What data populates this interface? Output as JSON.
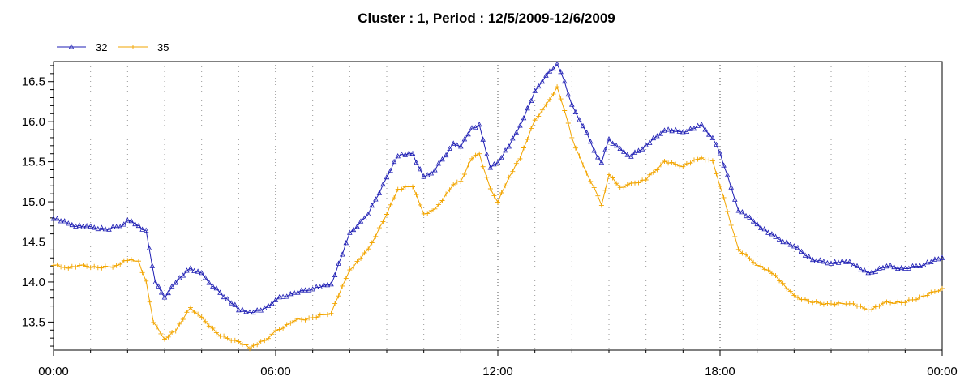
{
  "chart_data": {
    "type": "line",
    "title": "Cluster : 1, Period : 12/5/2009-12/6/2009",
    "xlabel": "",
    "ylabel": "",
    "x_ticks": [
      "00:00",
      "06:00",
      "12:00",
      "18:00",
      "00:00"
    ],
    "x_range_hours": [
      0,
      24
    ],
    "y_ticks": [
      "13.5",
      "14.0",
      "14.5",
      "15.0",
      "15.5",
      "16.0",
      "16.5"
    ],
    "ylim": [
      13.15,
      16.75
    ],
    "grid": "vertical dotted lines",
    "legend_position": "top-left",
    "series": [
      {
        "name": "32",
        "color": "#1f1fb4",
        "marker": "triangle",
        "points": [
          [
            0,
            14.8
          ],
          [
            0.5,
            14.71
          ],
          [
            1.0,
            14.68
          ],
          [
            1.5,
            14.66
          ],
          [
            1.9,
            14.71
          ],
          [
            2.0,
            14.78
          ],
          [
            2.3,
            14.7
          ],
          [
            2.5,
            14.63
          ],
          [
            2.75,
            14.0
          ],
          [
            3.0,
            13.8
          ],
          [
            3.3,
            14.0
          ],
          [
            3.7,
            14.17
          ],
          [
            4.0,
            14.1
          ],
          [
            4.3,
            13.95
          ],
          [
            4.7,
            13.78
          ],
          [
            5.0,
            13.66
          ],
          [
            5.3,
            13.62
          ],
          [
            5.7,
            13.66
          ],
          [
            6.0,
            13.78
          ],
          [
            6.5,
            13.86
          ],
          [
            7.0,
            13.92
          ],
          [
            7.5,
            13.97
          ],
          [
            8.0,
            14.6
          ],
          [
            8.5,
            14.85
          ],
          [
            9.0,
            15.3
          ],
          [
            9.3,
            15.58
          ],
          [
            9.7,
            15.6
          ],
          [
            10.0,
            15.3
          ],
          [
            10.3,
            15.4
          ],
          [
            10.8,
            15.72
          ],
          [
            11.0,
            15.7
          ],
          [
            11.3,
            15.92
          ],
          [
            11.5,
            15.95
          ],
          [
            11.8,
            15.43
          ],
          [
            12.0,
            15.48
          ],
          [
            12.3,
            15.7
          ],
          [
            12.6,
            15.95
          ],
          [
            13.0,
            16.37
          ],
          [
            13.3,
            16.58
          ],
          [
            13.5,
            16.65
          ],
          [
            13.6,
            16.73
          ],
          [
            13.8,
            16.5
          ],
          [
            14.0,
            16.2
          ],
          [
            14.3,
            15.95
          ],
          [
            14.7,
            15.55
          ],
          [
            14.8,
            15.5
          ],
          [
            15.0,
            15.78
          ],
          [
            15.3,
            15.65
          ],
          [
            15.6,
            15.57
          ],
          [
            16.0,
            15.7
          ],
          [
            16.5,
            15.9
          ],
          [
            17.0,
            15.87
          ],
          [
            17.5,
            15.95
          ],
          [
            17.8,
            15.8
          ],
          [
            18.0,
            15.6
          ],
          [
            18.5,
            14.9
          ],
          [
            19.0,
            14.72
          ],
          [
            19.5,
            14.55
          ],
          [
            20.0,
            14.45
          ],
          [
            20.5,
            14.27
          ],
          [
            21.0,
            14.24
          ],
          [
            21.5,
            14.25
          ],
          [
            22.0,
            14.1
          ],
          [
            22.5,
            14.2
          ],
          [
            23.0,
            14.16
          ],
          [
            23.5,
            14.22
          ],
          [
            24.0,
            14.3
          ]
        ]
      },
      {
        "name": "35",
        "color": "#f2a500",
        "marker": "plus",
        "points": [
          [
            0,
            14.22
          ],
          [
            0.3,
            14.18
          ],
          [
            0.8,
            14.2
          ],
          [
            1.3,
            14.18
          ],
          [
            1.7,
            14.2
          ],
          [
            2.0,
            14.28
          ],
          [
            2.3,
            14.26
          ],
          [
            2.5,
            14.0
          ],
          [
            2.7,
            13.5
          ],
          [
            3.0,
            13.28
          ],
          [
            3.3,
            13.4
          ],
          [
            3.7,
            13.68
          ],
          [
            4.0,
            13.55
          ],
          [
            4.5,
            13.33
          ],
          [
            5.0,
            13.25
          ],
          [
            5.3,
            13.18
          ],
          [
            5.7,
            13.27
          ],
          [
            6.0,
            13.38
          ],
          [
            6.5,
            13.52
          ],
          [
            7.0,
            13.55
          ],
          [
            7.5,
            13.62
          ],
          [
            8.0,
            14.15
          ],
          [
            8.5,
            14.4
          ],
          [
            9.0,
            14.85
          ],
          [
            9.3,
            15.15
          ],
          [
            9.7,
            15.2
          ],
          [
            10.0,
            14.85
          ],
          [
            10.3,
            14.9
          ],
          [
            10.8,
            15.22
          ],
          [
            11.0,
            15.25
          ],
          [
            11.3,
            15.55
          ],
          [
            11.5,
            15.6
          ],
          [
            11.8,
            15.15
          ],
          [
            12.0,
            15.0
          ],
          [
            12.3,
            15.3
          ],
          [
            12.6,
            15.55
          ],
          [
            13.0,
            16.02
          ],
          [
            13.3,
            16.2
          ],
          [
            13.5,
            16.35
          ],
          [
            13.6,
            16.43
          ],
          [
            13.8,
            16.15
          ],
          [
            14.0,
            15.8
          ],
          [
            14.3,
            15.45
          ],
          [
            14.7,
            15.08
          ],
          [
            14.8,
            14.95
          ],
          [
            15.0,
            15.35
          ],
          [
            15.3,
            15.18
          ],
          [
            15.6,
            15.22
          ],
          [
            16.0,
            15.28
          ],
          [
            16.5,
            15.5
          ],
          [
            17.0,
            15.45
          ],
          [
            17.5,
            15.55
          ],
          [
            17.8,
            15.5
          ],
          [
            18.0,
            15.2
          ],
          [
            18.5,
            14.4
          ],
          [
            19.0,
            14.22
          ],
          [
            19.5,
            14.08
          ],
          [
            20.0,
            13.82
          ],
          [
            20.5,
            13.75
          ],
          [
            21.0,
            13.72
          ],
          [
            21.5,
            13.74
          ],
          [
            22.0,
            13.65
          ],
          [
            22.5,
            13.74
          ],
          [
            23.0,
            13.75
          ],
          [
            23.5,
            13.82
          ],
          [
            24.0,
            13.92
          ]
        ]
      }
    ]
  }
}
